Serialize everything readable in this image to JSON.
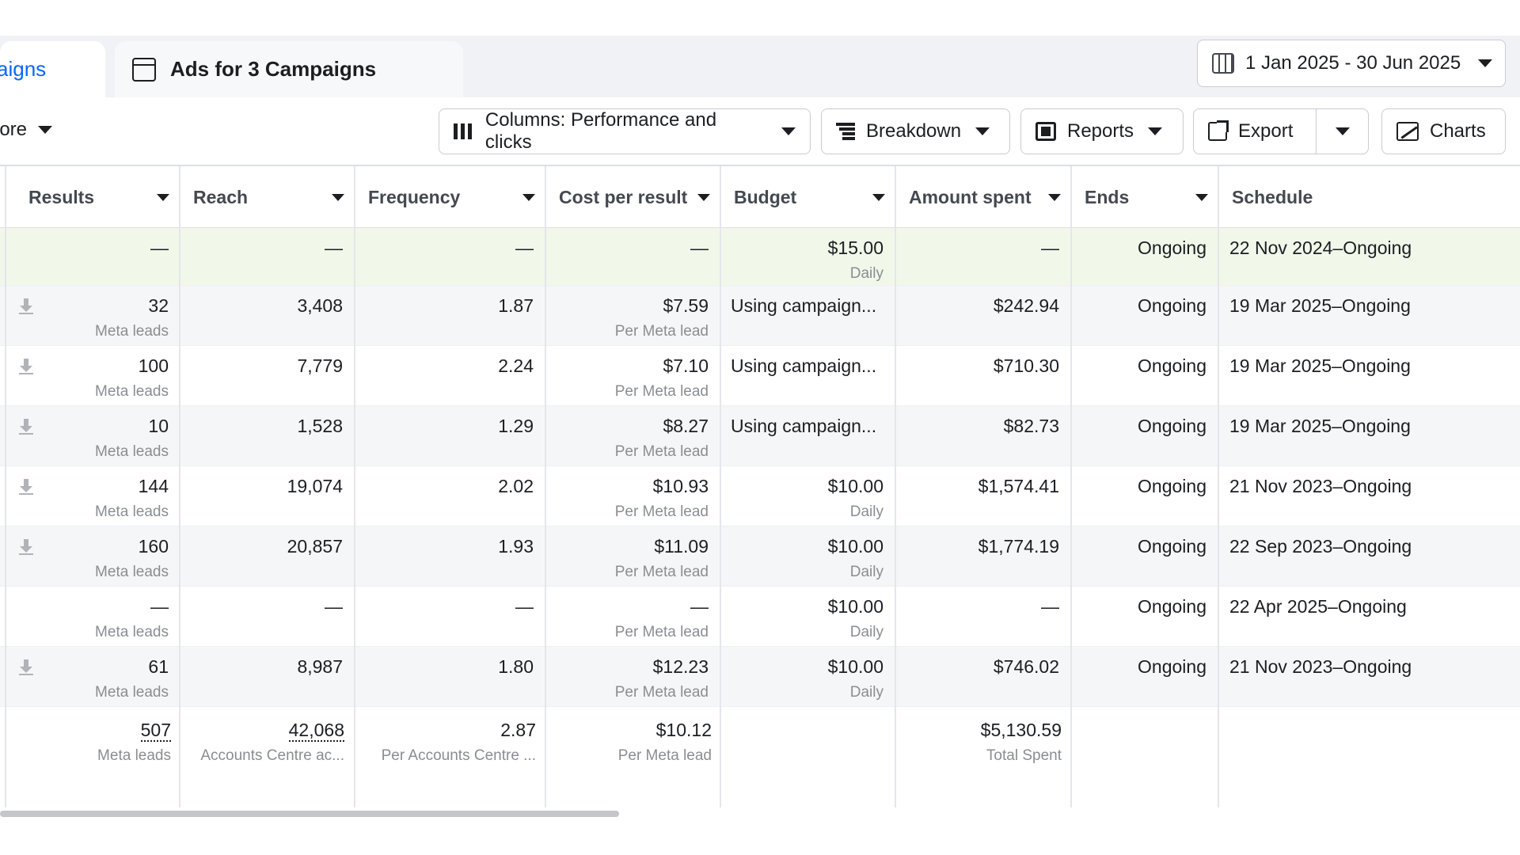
{
  "tabs": {
    "campaigns_label": "aigns",
    "ads_label": "Ads for 3 Campaigns"
  },
  "date_range": "1 Jan 2025 - 30 Jun 2025",
  "toolbar": {
    "more_label": "lore",
    "columns_label": "Columns: Performance and clicks",
    "breakdown_label": "Breakdown",
    "reports_label": "Reports",
    "export_label": "Export",
    "charts_label": "Charts"
  },
  "columns": [
    "Results",
    "Reach",
    "Frequency",
    "Cost per result",
    "Budget",
    "Amount spent",
    "Ends",
    "Schedule"
  ],
  "rows": [
    {
      "results": "—",
      "results_sub": "",
      "reach": "—",
      "frequency": "—",
      "cost": "—",
      "cost_sub": "",
      "budget": "$15.00",
      "budget_sub": "Daily",
      "spent": "—",
      "ends": "Ongoing",
      "schedule": "22 Nov 2024–Ongoing",
      "download": false
    },
    {
      "results": "32",
      "results_sub": "Meta leads",
      "reach": "3,408",
      "frequency": "1.87",
      "cost": "$7.59",
      "cost_sub": "Per Meta lead",
      "budget": "Using campaign...",
      "budget_sub": "",
      "spent": "$242.94",
      "ends": "Ongoing",
      "schedule": "19 Mar 2025–Ongoing",
      "download": true
    },
    {
      "results": "100",
      "results_sub": "Meta leads",
      "reach": "7,779",
      "frequency": "2.24",
      "cost": "$7.10",
      "cost_sub": "Per Meta lead",
      "budget": "Using campaign...",
      "budget_sub": "",
      "spent": "$710.30",
      "ends": "Ongoing",
      "schedule": "19 Mar 2025–Ongoing",
      "download": true
    },
    {
      "results": "10",
      "results_sub": "Meta leads",
      "reach": "1,528",
      "frequency": "1.29",
      "cost": "$8.27",
      "cost_sub": "Per Meta lead",
      "budget": "Using campaign...",
      "budget_sub": "",
      "spent": "$82.73",
      "ends": "Ongoing",
      "schedule": "19 Mar 2025–Ongoing",
      "download": true
    },
    {
      "results": "144",
      "results_sub": "Meta leads",
      "reach": "19,074",
      "frequency": "2.02",
      "cost": "$10.93",
      "cost_sub": "Per Meta lead",
      "budget": "$10.00",
      "budget_sub": "Daily",
      "spent": "$1,574.41",
      "ends": "Ongoing",
      "schedule": "21 Nov 2023–Ongoing",
      "download": true
    },
    {
      "results": "160",
      "results_sub": "Meta leads",
      "reach": "20,857",
      "frequency": "1.93",
      "cost": "$11.09",
      "cost_sub": "Per Meta lead",
      "budget": "$10.00",
      "budget_sub": "Daily",
      "spent": "$1,774.19",
      "ends": "Ongoing",
      "schedule": "22 Sep 2023–Ongoing",
      "download": true
    },
    {
      "results": "—",
      "results_sub": "Meta leads",
      "reach": "—",
      "frequency": "—",
      "cost": "—",
      "cost_sub": "Per Meta lead",
      "budget": "$10.00",
      "budget_sub": "Daily",
      "spent": "—",
      "ends": "Ongoing",
      "schedule": "22 Apr 2025–Ongoing",
      "download": false
    },
    {
      "results": "61",
      "results_sub": "Meta leads",
      "reach": "8,987",
      "frequency": "1.80",
      "cost": "$12.23",
      "cost_sub": "Per Meta lead",
      "budget": "$10.00",
      "budget_sub": "Daily",
      "spent": "$746.02",
      "ends": "Ongoing",
      "schedule": "21 Nov 2023–Ongoing",
      "download": true
    }
  ],
  "totals": {
    "results": "507",
    "results_sub": "Meta leads",
    "reach": "42,068",
    "reach_sub": "Accounts Centre ac...",
    "frequency": "2.87",
    "frequency_sub": "Per Accounts Centre ...",
    "cost": "$10.12",
    "cost_sub": "Per Meta lead",
    "spent": "$5,130.59",
    "spent_sub": "Total Spent"
  },
  "icons": [
    "calendar-icon",
    "columns-icon",
    "breakdown-icon",
    "reports-icon",
    "export-icon",
    "charts-icon",
    "ad-preview-icon",
    "download-icon"
  ]
}
